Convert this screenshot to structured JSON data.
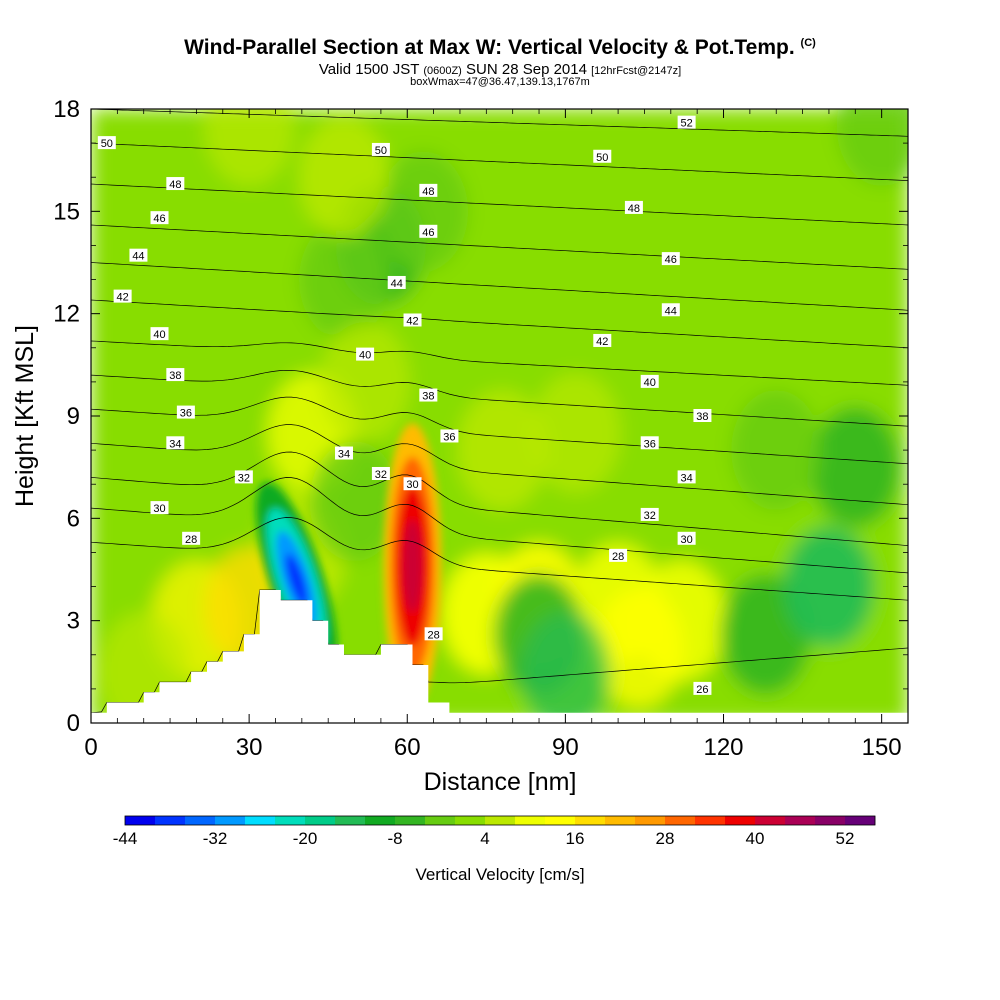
{
  "title": {
    "main": "Wind-Parallel Section at Max W: Vertical Velocity & Pot.Temp.",
    "copyright": "(C)",
    "valid_prefix": "Valid 1500 JST",
    "utc": "(0600Z)",
    "valid_date": "SUN 28 Sep 2014",
    "forecast": "[12hrFcst@2147z]",
    "box_info": "boxWmax=47@36.47,139.13,1767m"
  },
  "colorbar": {
    "label": "Vertical Velocity [cm/s]",
    "tick_labels": [
      "-44",
      "-32",
      "-20",
      "-8",
      "4",
      "16",
      "28",
      "40",
      "52"
    ],
    "colors": [
      "#0000ee",
      "#0033ff",
      "#0066ff",
      "#0099ff",
      "#00ddff",
      "#00ddbb",
      "#00cc88",
      "#22bb55",
      "#11aa22",
      "#33b522",
      "#66cc11",
      "#88dd00",
      "#bbe800",
      "#eeff00",
      "#ffff00",
      "#ffdd00",
      "#ffbb00",
      "#ff9900",
      "#ff6600",
      "#ff3300",
      "#ee0000",
      "#cc0033",
      "#aa0055",
      "#880066",
      "#660077"
    ]
  },
  "chart_data": {
    "type": "heatmap",
    "xlabel": "Distance [nm]",
    "ylabel": "Height [Kft MSL]",
    "xlim": [
      0,
      155
    ],
    "ylim": [
      0,
      18
    ],
    "x_ticks": [
      "0",
      "30",
      "60",
      "90",
      "120",
      "150"
    ],
    "y_ticks": [
      "0",
      "3",
      "6",
      "9",
      "12",
      "15",
      "18"
    ],
    "background_value_range": "0 to 8 cm/s",
    "updraft_max": {
      "x": 61,
      "y": 4.6,
      "value": 47
    },
    "downdraft_min": {
      "x": 39,
      "y": 4.2,
      "value": -40
    },
    "terrain_profile": [
      [
        0,
        0.3
      ],
      [
        3,
        0.3
      ],
      [
        3,
        0.6
      ],
      [
        10,
        0.6
      ],
      [
        10,
        0.9
      ],
      [
        13,
        0.9
      ],
      [
        13,
        1.2
      ],
      [
        19,
        1.2
      ],
      [
        19,
        1.5
      ],
      [
        22,
        1.5
      ],
      [
        22,
        1.8
      ],
      [
        25,
        1.8
      ],
      [
        25,
        2.1
      ],
      [
        29,
        2.1
      ],
      [
        29,
        2.6
      ],
      [
        32,
        2.6
      ],
      [
        32,
        3.9
      ],
      [
        36,
        3.9
      ],
      [
        36,
        3.6
      ],
      [
        42,
        3.6
      ],
      [
        42,
        3.0
      ],
      [
        45,
        3.0
      ],
      [
        45,
        2.3
      ],
      [
        48,
        2.3
      ],
      [
        48,
        2.0
      ],
      [
        55,
        2.0
      ],
      [
        55,
        2.3
      ],
      [
        61,
        2.3
      ],
      [
        61,
        1.7
      ],
      [
        64,
        1.7
      ],
      [
        64,
        0.6
      ],
      [
        68,
        0.6
      ],
      [
        68,
        0.3
      ],
      [
        155,
        0.3
      ]
    ],
    "theta_contours": [
      {
        "label": "26",
        "y0": 0.3,
        "y1": 2.2
      },
      {
        "label": "28",
        "y0": 5.3,
        "y1": 3.6
      },
      {
        "label": "30",
        "y0": 6.3,
        "y1": 4.4
      },
      {
        "label": "32",
        "y0": 7.2,
        "y1": 5.2
      },
      {
        "label": "34",
        "y0": 8.2,
        "y1": 6.4
      },
      {
        "label": "36",
        "y0": 9.2,
        "y1": 7.6
      },
      {
        "label": "38",
        "y0": 10.2,
        "y1": 8.7
      },
      {
        "label": "40",
        "y0": 11.2,
        "y1": 9.9
      },
      {
        "label": "42",
        "y0": 12.4,
        "y1": 11.0
      },
      {
        "label": "44",
        "y0": 13.5,
        "y1": 12.1
      },
      {
        "label": "46",
        "y0": 14.6,
        "y1": 13.3
      },
      {
        "label": "48",
        "y0": 15.8,
        "y1": 14.6
      },
      {
        "label": "50",
        "y0": 17.0,
        "y1": 15.9
      },
      {
        "label": "52",
        "y0": 18.0,
        "y1": 17.2
      }
    ],
    "contour_labels": [
      {
        "text": "50",
        "x": 3,
        "y": 17.0
      },
      {
        "text": "48",
        "x": 16,
        "y": 15.8
      },
      {
        "text": "46",
        "x": 13,
        "y": 14.8
      },
      {
        "text": "44",
        "x": 9,
        "y": 13.7
      },
      {
        "text": "42",
        "x": 6,
        "y": 12.5
      },
      {
        "text": "40",
        "x": 13,
        "y": 11.4
      },
      {
        "text": "38",
        "x": 16,
        "y": 10.2
      },
      {
        "text": "36",
        "x": 18,
        "y": 9.1
      },
      {
        "text": "34",
        "x": 16,
        "y": 8.2
      },
      {
        "text": "32",
        "x": 29,
        "y": 7.2
      },
      {
        "text": "30",
        "x": 13,
        "y": 6.3
      },
      {
        "text": "28",
        "x": 19,
        "y": 5.4
      },
      {
        "text": "50",
        "x": 55,
        "y": 16.8
      },
      {
        "text": "48",
        "x": 64,
        "y": 15.6
      },
      {
        "text": "46",
        "x": 64,
        "y": 14.4
      },
      {
        "text": "44",
        "x": 58,
        "y": 12.9
      },
      {
        "text": "42",
        "x": 61,
        "y": 11.8
      },
      {
        "text": "40",
        "x": 52,
        "y": 10.8
      },
      {
        "text": "38",
        "x": 64,
        "y": 9.6
      },
      {
        "text": "36",
        "x": 68,
        "y": 8.4
      },
      {
        "text": "34",
        "x": 48,
        "y": 7.9
      },
      {
        "text": "32",
        "x": 55,
        "y": 7.3
      },
      {
        "text": "30",
        "x": 61,
        "y": 7.0
      },
      {
        "text": "28",
        "x": 65,
        "y": 2.6
      },
      {
        "text": "52",
        "x": 113,
        "y": 17.6
      },
      {
        "text": "50",
        "x": 97,
        "y": 16.6
      },
      {
        "text": "48",
        "x": 103,
        "y": 15.1
      },
      {
        "text": "46",
        "x": 110,
        "y": 13.6
      },
      {
        "text": "44",
        "x": 110,
        "y": 12.1
      },
      {
        "text": "42",
        "x": 97,
        "y": 11.2
      },
      {
        "text": "40",
        "x": 106,
        "y": 10.0
      },
      {
        "text": "38",
        "x": 116,
        "y": 9.0
      },
      {
        "text": "36",
        "x": 106,
        "y": 8.2
      },
      {
        "text": "34",
        "x": 113,
        "y": 7.2
      },
      {
        "text": "32",
        "x": 106,
        "y": 6.1
      },
      {
        "text": "30",
        "x": 113,
        "y": 5.4
      },
      {
        "text": "28",
        "x": 100,
        "y": 4.9
      },
      {
        "text": "26",
        "x": 116,
        "y": 1.0
      }
    ]
  }
}
